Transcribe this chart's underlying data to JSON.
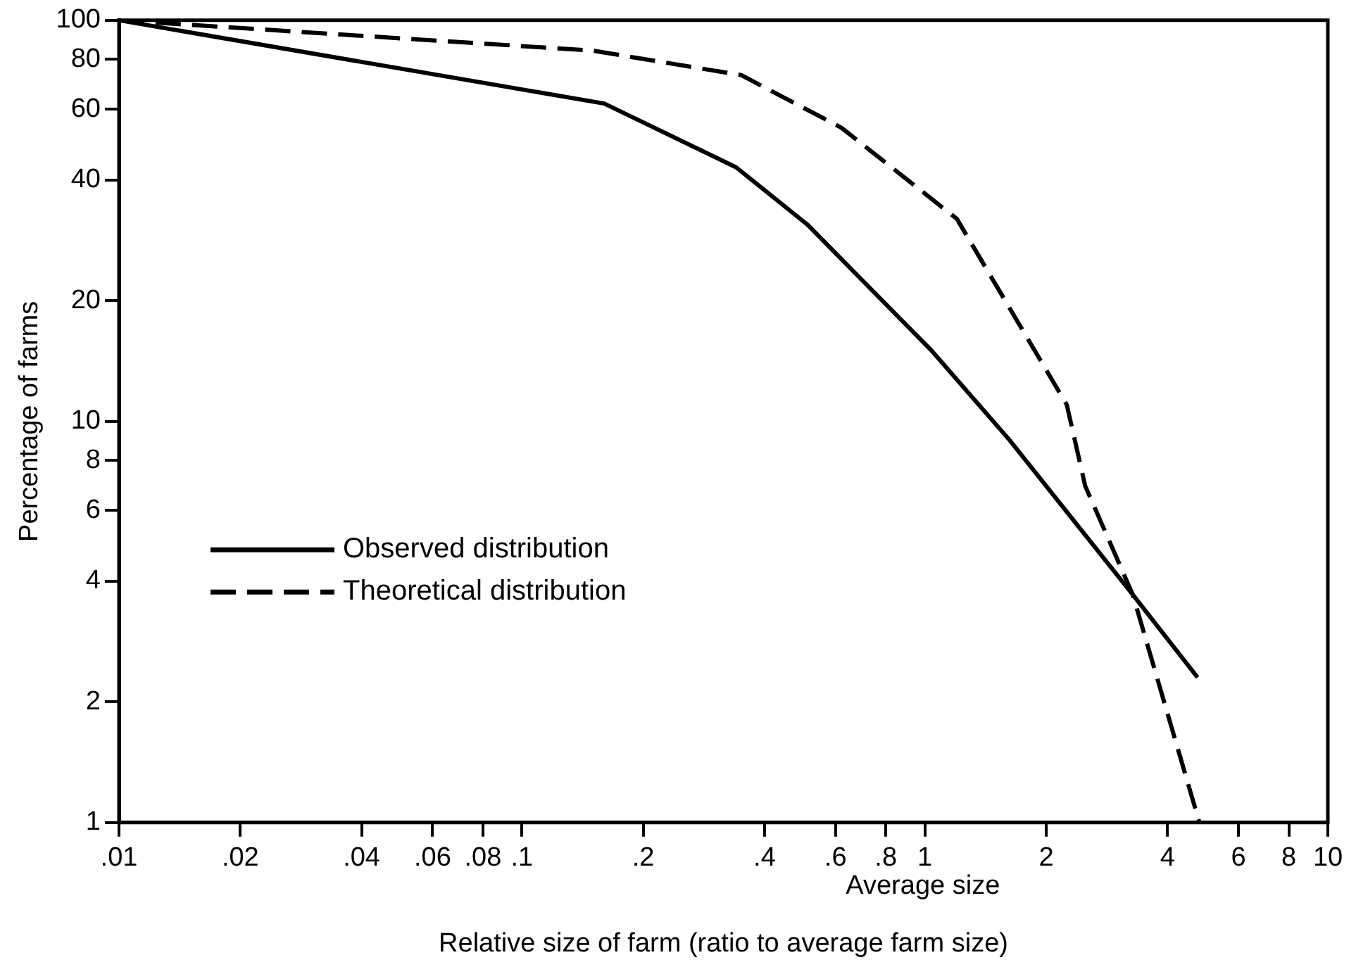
{
  "chart_data": {
    "type": "line",
    "xlabel": "Relative size of farm (ratio to average farm size)",
    "ylabel": "Percentage of farms",
    "log": "xy",
    "grid": false,
    "legend": "center left",
    "marker": "none",
    "xlim": [
      0.01,
      10
    ],
    "xticks": [
      {
        "value": 0.01,
        "label": ".01"
      },
      {
        "value": 0.02,
        "label": ".02"
      },
      {
        "value": 0.04,
        "label": ".04"
      },
      {
        "value": 0.06,
        "label": ".06"
      },
      {
        "value": 0.08,
        "label": ".08"
      },
      {
        "value": 0.1,
        "label": ".1"
      },
      {
        "value": 0.2,
        "label": ".2"
      },
      {
        "value": 0.4,
        "label": ".4"
      },
      {
        "value": 0.6,
        "label": ".6"
      },
      {
        "value": 0.8,
        "label": ".8"
      },
      1,
      2,
      4,
      6,
      8,
      10
    ],
    "ylim": [
      1,
      100
    ],
    "yticks": [
      1,
      2,
      4,
      6,
      8,
      10,
      20,
      40,
      60,
      80,
      100
    ],
    "annotations": [
      "Average size"
    ],
    "series": [
      {
        "name": "Observed distribution",
        "color": "#000000",
        "line_style": "solid",
        "x": [
          0.01,
          0.16,
          0.34,
          0.51,
          1.04,
          1.62,
          3.28,
          4.75
        ],
        "values": [
          100,
          62,
          43,
          31,
          15,
          9,
          3.7,
          2.3
        ]
      },
      {
        "name": "Theoretical distribution",
        "color": "#000000",
        "line_style": "dashed",
        "x": [
          0.01,
          0.15,
          0.35,
          0.62,
          1.2,
          2.25,
          2.5,
          3.28,
          4.8
        ],
        "values": [
          100,
          84,
          73,
          54,
          32,
          11,
          6.9,
          3.7,
          1
        ]
      }
    ]
  }
}
